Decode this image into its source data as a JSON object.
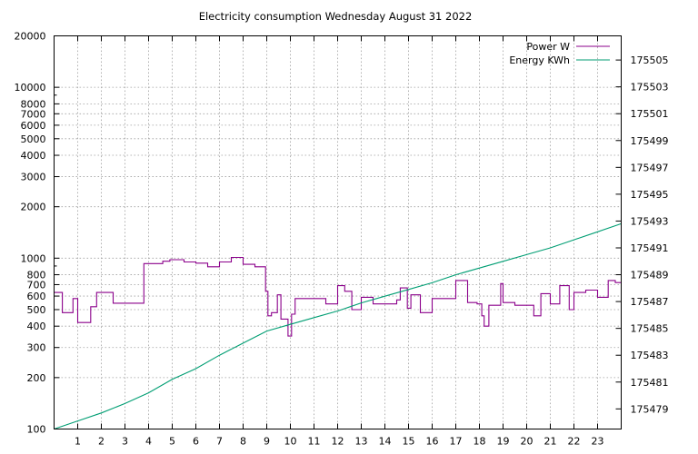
{
  "chart_data": {
    "type": "line",
    "title": "Electricity consumption Wednesday August 31 2022",
    "x_ticks": [
      "1",
      "2",
      "3",
      "4",
      "5",
      "6",
      "7",
      "8",
      "9",
      "10",
      "11",
      "12",
      "13",
      "14",
      "15",
      "16",
      "17",
      "18",
      "19",
      "20",
      "21",
      "22",
      "23"
    ],
    "xlim": [
      0,
      24
    ],
    "y_left": {
      "scale": "log",
      "ylim": [
        100,
        20000
      ],
      "ticks": [
        "100",
        "200",
        "300",
        "400",
        "500",
        "600",
        "700",
        "800",
        "1000",
        "2000",
        "3000",
        "4000",
        "5000",
        "6000",
        "7000",
        "8000",
        "10000",
        "20000"
      ]
    },
    "y_right": {
      "ylim": [
        175477.5,
        175506.8
      ],
      "ticks": [
        "175479",
        "175481",
        "175483",
        "175485",
        "175487",
        "175489",
        "175491",
        "175493",
        "175495",
        "175497",
        "175499",
        "175501",
        "175503",
        "175505"
      ]
    },
    "grid": true,
    "legend_position": "top-right",
    "series": [
      {
        "name": "Power W",
        "axis": "left",
        "color": "#8b008b",
        "step": true,
        "x": [
          0,
          0.35,
          0.8,
          1.0,
          1.55,
          1.8,
          2.5,
          3.2,
          3.8,
          4.6,
          4.9,
          5.5,
          6.0,
          6.5,
          7.0,
          7.5,
          8.0,
          8.5,
          8.95,
          9.05,
          9.2,
          9.45,
          9.6,
          9.9,
          10.05,
          10.2,
          11.0,
          11.5,
          12.0,
          12.3,
          12.6,
          13.0,
          13.5,
          14.0,
          14.5,
          14.65,
          14.95,
          15.1,
          15.5,
          16.0,
          16.5,
          17.0,
          17.5,
          17.9,
          18.1,
          18.2,
          18.4,
          18.9,
          19.0,
          19.5,
          20.1,
          20.3,
          20.6,
          21.0,
          21.4,
          21.6,
          21.8,
          22.0,
          22.5,
          23.0,
          23.45,
          23.75
        ],
        "values": [
          630,
          480,
          580,
          420,
          520,
          630,
          545,
          545,
          930,
          960,
          980,
          950,
          935,
          890,
          950,
          1010,
          920,
          890,
          640,
          460,
          480,
          610,
          440,
          350,
          470,
          580,
          580,
          540,
          690,
          640,
          500,
          590,
          540,
          540,
          570,
          670,
          510,
          610,
          480,
          580,
          580,
          740,
          550,
          540,
          460,
          400,
          530,
          710,
          550,
          530,
          530,
          460,
          620,
          540,
          690,
          690,
          500,
          630,
          650,
          590,
          740,
          720
        ]
      },
      {
        "name": "Energy KWh",
        "axis": "right",
        "color": "#009e73",
        "x": [
          0,
          1,
          2,
          3,
          4,
          5,
          6,
          7,
          8,
          9,
          10,
          11,
          12,
          13,
          14,
          15,
          16,
          17,
          18,
          19,
          20,
          21,
          22,
          23,
          24
        ],
        "values": [
          175477.5,
          175478.1,
          175478.7,
          175479.4,
          175480.2,
          175481.2,
          175482.0,
          175483.0,
          175483.9,
          175484.8,
          175485.3,
          175485.8,
          175486.3,
          175486.9,
          175487.4,
          175487.9,
          175488.4,
          175489.0,
          175489.5,
          175490.0,
          175490.5,
          175491.0,
          175491.6,
          175492.2,
          175492.8
        ]
      }
    ]
  }
}
